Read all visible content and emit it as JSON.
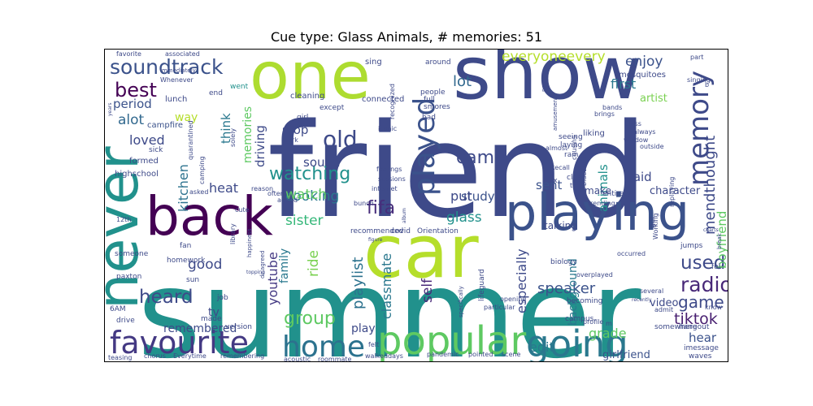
{
  "figure": {
    "title": "Cue type: Glass Animals, # memories: 51"
  },
  "wordcloud": {
    "palette": "viridis",
    "words": [
      {
        "text": "friend",
        "color": "#3e4a89"
      },
      {
        "text": "summer",
        "color": "#21918c"
      },
      {
        "text": "car",
        "color": "#b5de2b"
      },
      {
        "text": "show",
        "color": "#3e4a89"
      },
      {
        "text": "one",
        "color": "#addc30"
      },
      {
        "text": "back",
        "color": "#440154"
      },
      {
        "text": "never",
        "color": "#21918c"
      },
      {
        "text": "playing",
        "color": "#3b528b"
      },
      {
        "text": "popular",
        "color": "#5ec962"
      },
      {
        "text": "going",
        "color": "#2a788e"
      },
      {
        "text": "favourite",
        "color": "#443983"
      },
      {
        "text": "home",
        "color": "#2c728e"
      },
      {
        "text": "played",
        "color": "#3b528b"
      },
      {
        "text": "memory",
        "color": "#3e4a89"
      },
      {
        "text": "soundtrack",
        "color": "#3b528b"
      },
      {
        "text": "best",
        "color": "#440154"
      },
      {
        "text": "old",
        "color": "#3e4a89"
      },
      {
        "text": "watching",
        "color": "#21918c"
      },
      {
        "text": "used",
        "color": "#3e4a89"
      },
      {
        "text": "radio",
        "color": "#482878"
      },
      {
        "text": "heard",
        "color": "#3e4a89"
      },
      {
        "text": "fifa",
        "color": "#472d7b"
      },
      {
        "text": "group",
        "color": "#5ec962"
      },
      {
        "text": "lot",
        "color": "#31688e"
      },
      {
        "text": "everyoneevery",
        "color": "#b5de2b"
      },
      {
        "text": "enjoy",
        "color": "#3b528b"
      },
      {
        "text": "mendthought",
        "color": "#3e4a89"
      },
      {
        "text": "came",
        "color": "#3e4a89"
      },
      {
        "text": "alot",
        "color": "#31688e"
      },
      {
        "text": "period",
        "color": "#3b528b"
      },
      {
        "text": "loved",
        "color": "#3e4a89"
      },
      {
        "text": "kitchen",
        "color": "#2c728e"
      },
      {
        "text": "cooking",
        "color": "#2a788e"
      },
      {
        "text": "sister",
        "color": "#35b779"
      },
      {
        "text": "heat",
        "color": "#3e4a89"
      },
      {
        "text": "good",
        "color": "#3e4a89"
      },
      {
        "text": "youtube",
        "color": "#443983"
      },
      {
        "text": "family",
        "color": "#2a788e"
      },
      {
        "text": "ride",
        "color": "#7ad151"
      },
      {
        "text": "playlist",
        "color": "#2c728e"
      },
      {
        "text": "classmate",
        "color": "#2a788e"
      },
      {
        "text": "self",
        "color": "#482878"
      },
      {
        "text": "especially",
        "color": "#3e4a89"
      },
      {
        "text": "speaker",
        "color": "#3b528b"
      },
      {
        "text": "game",
        "color": "#3e4a89"
      },
      {
        "text": "tiktok",
        "color": "#481f70"
      },
      {
        "text": "grade",
        "color": "#5ec962"
      },
      {
        "text": "edit",
        "color": "#2a788e"
      },
      {
        "text": "hear",
        "color": "#3b528b"
      },
      {
        "text": "girlfriend",
        "color": "#3b528b"
      },
      {
        "text": "remembered",
        "color": "#3e4a89"
      },
      {
        "text": "tv",
        "color": "#3e4a89"
      },
      {
        "text": "play",
        "color": "#3e4a89"
      },
      {
        "text": "boyfriend",
        "color": "#5ec962"
      },
      {
        "text": "background",
        "color": "#2a788e"
      },
      {
        "text": "character",
        "color": "#3e4a89"
      },
      {
        "text": "glass",
        "color": "#21918c"
      },
      {
        "text": "study",
        "color": "#3b528b"
      },
      {
        "text": "talking",
        "color": "#3e4a89"
      },
      {
        "text": "animals",
        "color": "#21918c"
      },
      {
        "text": "sent",
        "color": "#3b528b"
      },
      {
        "text": "said",
        "color": "#3e4a89"
      },
      {
        "text": "first",
        "color": "#2a788e"
      },
      {
        "text": "stop",
        "color": "#3e4a89"
      },
      {
        "text": "sound",
        "color": "#3e4a89"
      },
      {
        "text": "watch",
        "color": "#5ec962"
      },
      {
        "text": "put",
        "color": "#3e4a89"
      },
      {
        "text": "think",
        "color": "#2a788e"
      },
      {
        "text": "driving",
        "color": "#3e4a89"
      },
      {
        "text": "memories",
        "color": "#5ec962"
      },
      {
        "text": "way",
        "color": "#b5de2b"
      },
      {
        "text": "artist",
        "color": "#7ad151"
      },
      {
        "text": "video",
        "color": "#3e4a89"
      },
      {
        "text": "make",
        "color": "#3e4a89"
      },
      {
        "text": "mosquitoes",
        "color": "#3e4a89"
      },
      {
        "text": "campfire",
        "color": "#3b528b"
      },
      {
        "text": "lunch",
        "color": "#3e4a89"
      },
      {
        "text": "end",
        "color": "#3e4a89"
      },
      {
        "text": "went",
        "color": "#21918c"
      },
      {
        "text": "cleaning",
        "color": "#3e4a89"
      },
      {
        "text": "connected",
        "color": "#3e4a89"
      },
      {
        "text": "sing",
        "color": "#3e4a89"
      },
      {
        "text": "around",
        "color": "#3e4a89"
      },
      {
        "text": "people",
        "color": "#3e4a89"
      },
      {
        "text": "full",
        "color": "#3e4a89"
      },
      {
        "text": "smores",
        "color": "#3e4a89"
      },
      {
        "text": "bad",
        "color": "#3e4a89"
      },
      {
        "text": "except",
        "color": "#3e4a89"
      },
      {
        "text": "girl",
        "color": "#3e4a89"
      },
      {
        "text": "park",
        "color": "#3e4a89"
      },
      {
        "text": "iconic",
        "color": "#3e4a89"
      },
      {
        "text": "liking",
        "color": "#3e4a89"
      },
      {
        "text": "seeing",
        "color": "#3e4a89"
      },
      {
        "text": "laying",
        "color": "#3e4a89"
      },
      {
        "text": "rain",
        "color": "#3e4a89"
      },
      {
        "text": "close",
        "color": "#3e4a89"
      },
      {
        "text": "trending",
        "color": "#3e4a89"
      },
      {
        "text": "entirety",
        "color": "#3e4a89"
      },
      {
        "text": "bunch",
        "color": "#3e4a89"
      },
      {
        "text": "internet",
        "color": "#3e4a89"
      },
      {
        "text": "sessions",
        "color": "#3e4a89"
      },
      {
        "text": "feelings",
        "color": "#3e4a89"
      },
      {
        "text": "covid",
        "color": "#3e4a89"
      },
      {
        "text": "recommended",
        "color": "#3e4a89"
      },
      {
        "text": "Orientation",
        "color": "#3e4a89"
      },
      {
        "text": "highschool",
        "color": "#3e4a89"
      },
      {
        "text": "formed",
        "color": "#3e4a89"
      },
      {
        "text": "sick",
        "color": "#3e4a89"
      },
      {
        "text": "asked",
        "color": "#3e4a89"
      },
      {
        "text": "cute",
        "color": "#3e4a89"
      },
      {
        "text": "reason",
        "color": "#3e4a89"
      },
      {
        "text": "often",
        "color": "#3e4a89"
      },
      {
        "text": "added",
        "color": "#3e4a89"
      },
      {
        "text": "fan",
        "color": "#3e4a89"
      },
      {
        "text": "homework",
        "color": "#3e4a89"
      },
      {
        "text": "someone",
        "color": "#3e4a89"
      },
      {
        "text": "paxton",
        "color": "#3e4a89"
      },
      {
        "text": "sun",
        "color": "#3e4a89"
      },
      {
        "text": "job",
        "color": "#3e4a89"
      },
      {
        "text": "6AM",
        "color": "#3e4a89"
      },
      {
        "text": "drive",
        "color": "#3e4a89"
      },
      {
        "text": "made",
        "color": "#3e4a89"
      },
      {
        "text": "version",
        "color": "#3e4a89"
      },
      {
        "text": "teasing",
        "color": "#3e4a89"
      },
      {
        "text": "chorus",
        "color": "#3e4a89"
      },
      {
        "text": "Everytime",
        "color": "#3e4a89"
      },
      {
        "text": "remembering",
        "color": "#3e4a89"
      },
      {
        "text": "acoustic",
        "color": "#3e4a89"
      },
      {
        "text": "roommate",
        "color": "#3e4a89"
      },
      {
        "text": "walked",
        "color": "#3e4a89"
      },
      {
        "text": "days",
        "color": "#3e4a89"
      },
      {
        "text": "pandemic",
        "color": "#3e4a89"
      },
      {
        "text": "pointed",
        "color": "#3e4a89"
      },
      {
        "text": "scene",
        "color": "#3e4a89"
      },
      {
        "text": "imessage",
        "color": "#3e4a89"
      },
      {
        "text": "waves",
        "color": "#3e4a89"
      },
      {
        "text": "somewhere",
        "color": "#3e4a89"
      },
      {
        "text": "hangout",
        "color": "#3e4a89"
      },
      {
        "text": "admit",
        "color": "#3e4a89"
      },
      {
        "text": "know",
        "color": "#3e4a89"
      },
      {
        "text": "several",
        "color": "#3e4a89"
      },
      {
        "text": "becoming",
        "color": "#3e4a89"
      },
      {
        "text": "biology",
        "color": "#3e4a89"
      },
      {
        "text": "overplayed",
        "color": "#3e4a89"
      },
      {
        "text": "occurred",
        "color": "#3e4a89"
      },
      {
        "text": "jumps",
        "color": "#3e4a89"
      },
      {
        "text": "campus",
        "color": "#3e4a89"
      },
      {
        "text": "profile",
        "color": "#3e4a89"
      },
      {
        "text": "opening",
        "color": "#3e4a89"
      },
      {
        "text": "lifeguard",
        "color": "#3e4a89"
      },
      {
        "text": "particular",
        "color": "#3e4a89"
      },
      {
        "text": "felt",
        "color": "#3e4a89"
      },
      {
        "text": "favorite",
        "color": "#3e4a89"
      },
      {
        "text": "associated",
        "color": "#3e4a89"
      },
      {
        "text": "immediately",
        "color": "#3e4a89"
      },
      {
        "text": "Whenever",
        "color": "#3e4a89"
      },
      {
        "text": "part",
        "color": "#3e4a89"
      },
      {
        "text": "singing",
        "color": "#3e4a89"
      },
      {
        "text": "bands",
        "color": "#3e4a89"
      },
      {
        "text": "brings",
        "color": "#3e4a89"
      },
      {
        "text": "class",
        "color": "#3e4a89"
      },
      {
        "text": "always",
        "color": "#3e4a89"
      },
      {
        "text": "window",
        "color": "#3e4a89"
      },
      {
        "text": "outside",
        "color": "#3e4a89"
      },
      {
        "text": "Working",
        "color": "#3e4a89"
      },
      {
        "text": "replaying",
        "color": "#3e4a89"
      },
      {
        "text": "camping",
        "color": "#3e4a89"
      },
      {
        "text": "quarantined",
        "color": "#3e4a89"
      },
      {
        "text": "solely",
        "color": "#3e4a89"
      },
      {
        "text": "cousins",
        "color": "#3e4a89"
      },
      {
        "text": "bluetooth",
        "color": "#3e4a89"
      },
      {
        "text": "almost",
        "color": "#3e4a89"
      },
      {
        "text": "Recall",
        "color": "#3e4a89"
      },
      {
        "text": "ex",
        "color": "#3e4a89"
      },
      {
        "text": "th",
        "color": "#3e4a89"
      },
      {
        "text": "past",
        "color": "#3e4a89"
      },
      {
        "text": "amusement",
        "color": "#3e4a89"
      },
      {
        "text": "12th",
        "color": "#3e4a89"
      },
      {
        "text": "library",
        "color": "#3e4a89"
      },
      {
        "text": "happiness",
        "color": "#3e4a89"
      },
      {
        "text": "disagreed",
        "color": "#3e4a89"
      },
      {
        "text": "specifically",
        "color": "#3e4a89"
      },
      {
        "text": "recently",
        "color": "#3e4a89"
      },
      {
        "text": "fol",
        "color": "#3e4a89"
      },
      {
        "text": "got",
        "color": "#3e4a89"
      },
      {
        "text": "break",
        "color": "#3e4a89"
      },
      {
        "text": "charts",
        "color": "#3e4a89"
      },
      {
        "text": "figure",
        "color": "#3e4a89"
      },
      {
        "text": "album",
        "color": "#3e4a89"
      },
      {
        "text": "years",
        "color": "#3e4a89"
      },
      {
        "text": "topping",
        "color": "#3e4a89"
      },
      {
        "text": "recognized",
        "color": "#3e4a89"
      },
      {
        "text": "b",
        "color": "#3e4a89"
      },
      {
        "text": "m",
        "color": "#3e4a89"
      }
    ]
  }
}
